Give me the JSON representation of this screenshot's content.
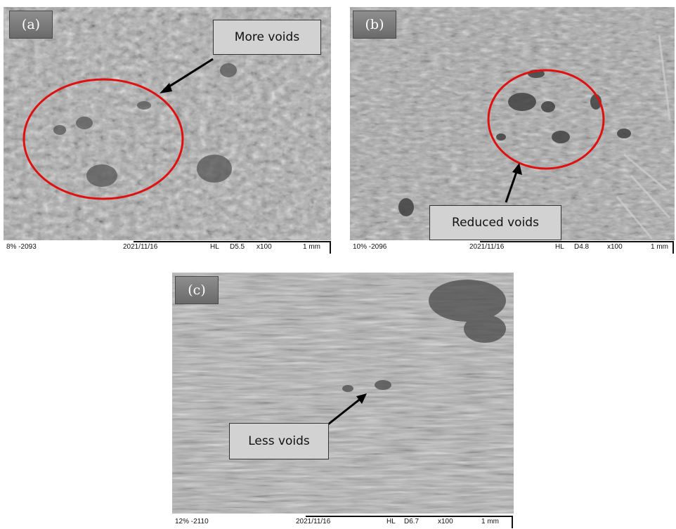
{
  "panels": [
    {
      "label": "(a)",
      "callout": "More voids",
      "info_left": "8% -2093",
      "date": "2021/11/16",
      "hl": "HL",
      "detector": "D5.5",
      "mag": "x100",
      "scale": "1 mm"
    },
    {
      "label": "(b)",
      "callout": "Reduced voids",
      "info_left": "10% -2096",
      "date": "2021/11/16",
      "hl": "HL",
      "detector": "D4.8",
      "mag": "x100",
      "scale": "1 mm"
    },
    {
      "label": "(c)",
      "callout": "Less voids",
      "info_left": "12% -2110",
      "date": "2021/11/16",
      "hl": "HL",
      "detector": "D6.7",
      "mag": "x100",
      "scale": "1 mm"
    }
  ],
  "colors": {
    "highlight_ellipse": "#e01010",
    "arrow": "#000000",
    "sem_base": "#a9a9a9",
    "label_box": "#7d7d7d",
    "callout_box": "#d2d2d2"
  }
}
